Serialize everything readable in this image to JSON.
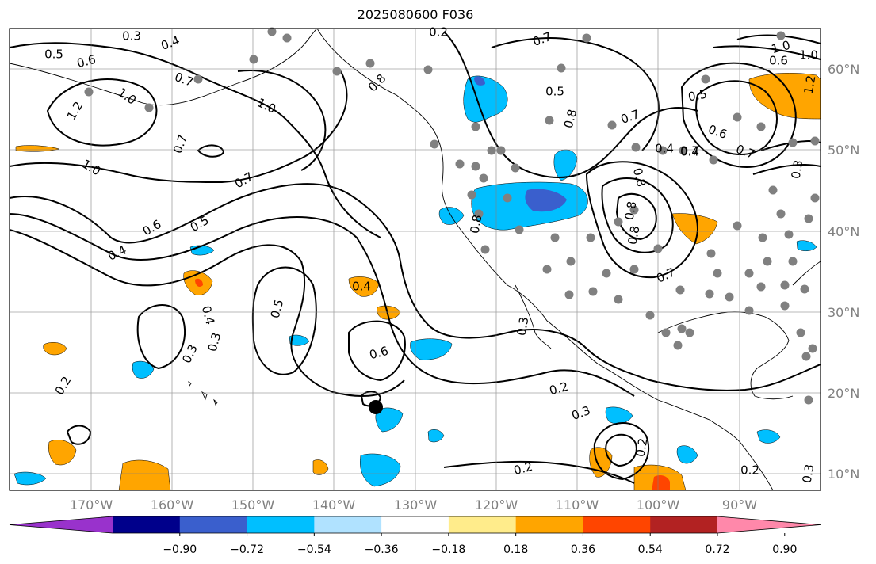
{
  "title": "2025080600 F036",
  "map": {
    "projection": "PlateCarree",
    "lon_range": [
      -180,
      -80
    ],
    "lat_range": [
      8,
      65
    ],
    "longitude_labels": [
      "170°W",
      "160°W",
      "150°W",
      "140°W",
      "130°W",
      "120°W",
      "110°W",
      "100°W",
      "90°W"
    ],
    "latitude_labels": [
      "60°N",
      "50°N",
      "40°N",
      "30°N",
      "20°N",
      "10°N"
    ],
    "grid": true,
    "coastlines": true,
    "colors": {
      "coastline": "#000000",
      "gridline": "#808080",
      "contour": "#000000",
      "station_marker": "#808080",
      "center_marker": "#000000"
    }
  },
  "contour_labels": [
    "0.3",
    "0.4",
    "0.5",
    "0.6",
    "0.7",
    "0.8",
    "1.0",
    "1.2",
    "1.0",
    "0.7",
    "1.0",
    "0.7",
    "0.6",
    "0.5",
    "0.4",
    "0.4",
    "0.5",
    "0.4",
    "0.3",
    "0.6",
    "0.3",
    "0.2",
    "0.2",
    "0.3",
    "0.2",
    "0.3",
    "0.2",
    "0.7",
    "0.8",
    "0.5",
    "0.7",
    "0.4",
    "0.5",
    "0.6",
    "0.8",
    "0.7",
    "1.0",
    "1.2",
    "0.6",
    "1.0",
    "0.4",
    "0.7",
    "0.3",
    "0.8",
    "0.8",
    "0.8",
    "0.7",
    "0.2",
    "0.3",
    "0.2"
  ],
  "colorbar": {
    "ticks": [
      "−0.90",
      "−0.72",
      "−0.54",
      "−0.36",
      "−0.18",
      "0.18",
      "0.36",
      "0.54",
      "0.72",
      "0.90"
    ],
    "colors": [
      "#9932cc",
      "#00008b",
      "#3a5fcd",
      "#00bfff",
      "#b0e2ff",
      "#ffffff",
      "#ffec8b",
      "#ffa500",
      "#ff4500",
      "#b22222",
      "#ff88aa"
    ],
    "extend": "both"
  }
}
